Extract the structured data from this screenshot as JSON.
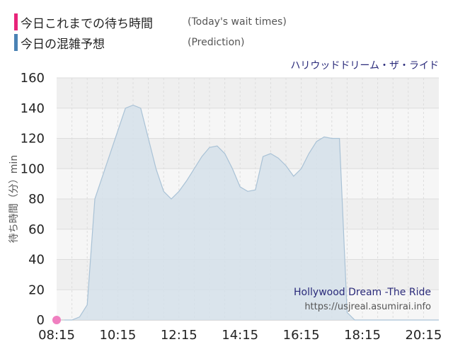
{
  "legend": {
    "items": [
      {
        "label": "今日これまでの待ち時間",
        "note": "(Today's wait times)",
        "color": "#e8247a"
      },
      {
        "label": "今日の混雑予想",
        "note": "(Prediction)",
        "color": "#4a82b4"
      }
    ]
  },
  "chart_data": {
    "type": "area",
    "title": "ハリウッドドリーム・ザ・ライド",
    "watermark_title": "Hollywood Dream -The Ride",
    "watermark_url": "https://usjreal.asumirai.info",
    "ylabel": "待ち時間（分）min",
    "xlabel": "",
    "ylim": [
      0,
      160
    ],
    "yticks": [
      0,
      20,
      40,
      60,
      80,
      100,
      120,
      140,
      160
    ],
    "xtick_labels": [
      "08:15",
      "10:15",
      "12:15",
      "14:15",
      "16:15",
      "18:15",
      "20:15"
    ],
    "xlim": [
      "08:15",
      "20:45"
    ],
    "grid": true,
    "colors": {
      "prediction_fill": "#d5e0ea",
      "prediction_line": "#a9c2d6",
      "today": "#f07fc0"
    },
    "series": [
      {
        "name": "今日の混雑予想",
        "x": [
          "08:30",
          "08:45",
          "09:00",
          "09:15",
          "09:30",
          "09:45",
          "10:00",
          "10:15",
          "10:30",
          "10:45",
          "11:00",
          "11:15",
          "11:30",
          "11:45",
          "12:00",
          "12:15",
          "12:30",
          "12:45",
          "13:00",
          "13:15",
          "13:30",
          "13:45",
          "14:00",
          "14:15",
          "14:30",
          "14:45",
          "15:00",
          "15:15",
          "15:30",
          "15:45",
          "16:00",
          "16:15",
          "16:30",
          "16:45",
          "17:00",
          "17:15",
          "17:30",
          "17:45",
          "18:00",
          "18:15",
          "18:30",
          "18:45",
          "19:00",
          "19:15",
          "19:30",
          "19:45",
          "20:00",
          "20:15",
          "20:30",
          "20:45"
        ],
        "values": [
          0,
          0,
          2,
          10,
          80,
          95,
          110,
          125,
          140,
          142,
          140,
          120,
          100,
          85,
          80,
          85,
          92,
          100,
          108,
          114,
          115,
          110,
          100,
          88,
          85,
          86,
          108,
          110,
          107,
          102,
          95,
          100,
          110,
          118,
          121,
          120,
          120,
          5,
          0,
          0,
          0,
          0,
          0,
          0,
          0,
          0,
          0,
          0,
          0,
          0
        ]
      },
      {
        "name": "今日これまでの待ち時間",
        "x": [
          "08:15"
        ],
        "values": [
          0
        ]
      }
    ]
  }
}
